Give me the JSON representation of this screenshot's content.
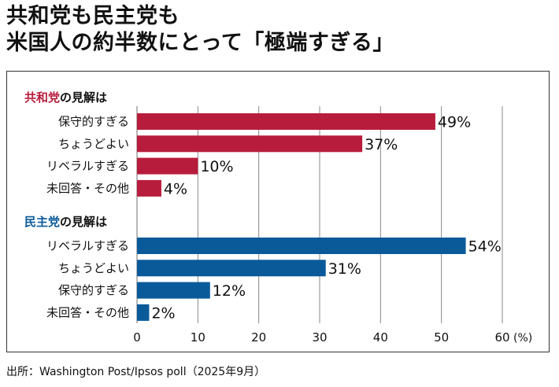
{
  "title": {
    "line1": "共和党も民主党も",
    "line2": "米国人の約半数にとって「極端すぎる」"
  },
  "source": "出所：Washington Post/Ipsos poll（2025年9月）",
  "colors": {
    "republican": "#b81c3c",
    "democrat": "#0a5a9a",
    "grid": "#888888",
    "text": "#111111"
  },
  "chart_data": {
    "type": "bar",
    "orientation": "horizontal",
    "xlim": [
      0,
      60
    ],
    "xticks": [
      "0",
      "10",
      "20",
      "30",
      "40",
      "50",
      "60"
    ],
    "xunit": "(%)",
    "groups": [
      {
        "name_colored": "共和党",
        "name_suffix": "の見解は",
        "categories": [
          "保守的すぎる",
          "ちょうどよい",
          "リベラルすぎる",
          "未回答・その他"
        ],
        "values": [
          49,
          37,
          10,
          4
        ],
        "labels": [
          "49%",
          "37%",
          "10%",
          "4%"
        ]
      },
      {
        "name_colored": "民主党",
        "name_suffix": "の見解は",
        "categories": [
          "リベラルすぎる",
          "ちょうどよい",
          "保守的すぎる",
          "未回答・その他"
        ],
        "values": [
          54,
          31,
          12,
          2
        ],
        "labels": [
          "54%",
          "31%",
          "12%",
          "2%"
        ]
      }
    ]
  }
}
